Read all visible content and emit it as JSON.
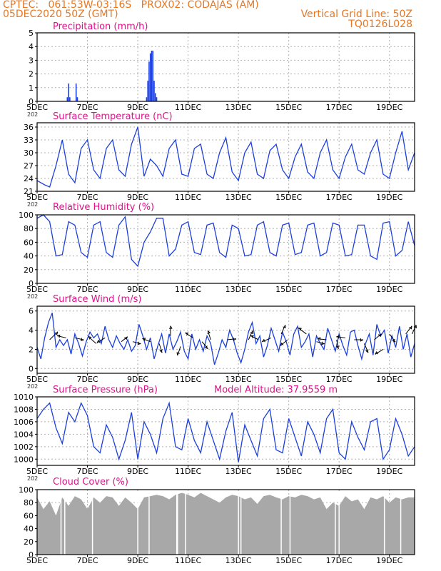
{
  "header": {
    "line1_left": "CPTEC:   061:53W-03:16S   PROX02: CODAJAS (AM)",
    "line2_left": "05DEC2020 50Z (GMT)",
    "line2_right": "Vertical Grid Line: 50Z",
    "line3_right": "TQ0126L028"
  },
  "colors": {
    "header": "#e87722",
    "panel_title": "#e0118a",
    "line": "#1c3fdc",
    "precip_bar": "#1c3fdc",
    "cloud_fill": "#a8a8a8",
    "grid": "#b0b0b0",
    "arrow": "#000000"
  },
  "x_axis": {
    "ticks": [
      "5DEC",
      "7DEC",
      "9DEC",
      "11DEC",
      "13DEC",
      "15DEC",
      "17DEC",
      "19DEC"
    ],
    "tick_day_offsets": [
      0,
      2,
      4,
      6,
      8,
      10,
      12,
      14
    ],
    "range_days": [
      0,
      15
    ],
    "stub_label": "202"
  },
  "chart_data": [
    {
      "type": "bar",
      "title": "Precipitation (mm/h)",
      "ylim": [
        0,
        5
      ],
      "yticks": [
        "0",
        "1",
        "2",
        "3",
        "4",
        "5"
      ],
      "bars_day": [
        1.2,
        1.25,
        1.3,
        1.55,
        1.6,
        4.35,
        4.4,
        4.45,
        4.5,
        4.55,
        4.6,
        4.65,
        4.7,
        4.75
      ],
      "bars_value": [
        0.3,
        1.3,
        0.3,
        1.3,
        0.3,
        0.3,
        1.5,
        2.9,
        3.5,
        3.7,
        3.7,
        1.5,
        0.6,
        0.3
      ]
    },
    {
      "type": "line",
      "title": "Surface Temperature (nC)",
      "ylim": [
        21,
        37
      ],
      "yticks": [
        "21",
        "24",
        "27",
        "30",
        "33",
        "36"
      ],
      "x_day": [
        0,
        0.3,
        0.5,
        0.75,
        1,
        1.25,
        1.5,
        1.75,
        2,
        2.25,
        2.5,
        2.75,
        3,
        3.25,
        3.5,
        3.75,
        4,
        4.25,
        4.5,
        4.75,
        5,
        5.25,
        5.5,
        5.75,
        6,
        6.25,
        6.5,
        6.75,
        7,
        7.25,
        7.5,
        7.75,
        8,
        8.25,
        8.5,
        8.75,
        9,
        9.25,
        9.5,
        9.75,
        10,
        10.25,
        10.5,
        10.75,
        11,
        11.25,
        11.5,
        11.75,
        12,
        12.25,
        12.5,
        12.75,
        13,
        13.25,
        13.5,
        13.75,
        14,
        14.25,
        14.5,
        14.75,
        15
      ],
      "y": [
        23.5,
        22.5,
        22.0,
        27.0,
        33.0,
        25.0,
        23.0,
        31.0,
        33.0,
        26.0,
        24.0,
        31.0,
        33.0,
        26.0,
        24.5,
        32.0,
        36.0,
        24.5,
        28.5,
        27.0,
        24.5,
        31.0,
        33.0,
        25.0,
        24.5,
        31.0,
        32.0,
        25.0,
        24.0,
        30.0,
        33.5,
        25.5,
        23.5,
        30.0,
        32.5,
        25.0,
        24.0,
        30.5,
        32.0,
        26.0,
        24.0,
        29.0,
        32.0,
        25.5,
        24.0,
        30.0,
        33.0,
        26.0,
        24.0,
        29.0,
        32.0,
        26.0,
        25.0,
        30.0,
        33.0,
        25.0,
        24.0,
        30.0,
        35.0,
        26.0,
        30.0
      ]
    },
    {
      "type": "line",
      "title": "Relative Humidity (%)",
      "ylim": [
        0,
        100
      ],
      "yticks": [
        "0",
        "20",
        "40",
        "60",
        "80",
        "100"
      ],
      "x_day": [
        0,
        0.25,
        0.5,
        0.75,
        1,
        1.25,
        1.5,
        1.75,
        2,
        2.25,
        2.5,
        2.75,
        3,
        3.25,
        3.5,
        3.75,
        4,
        4.25,
        4.5,
        4.75,
        5,
        5.25,
        5.5,
        5.75,
        6,
        6.25,
        6.5,
        6.75,
        7,
        7.25,
        7.5,
        7.75,
        8,
        8.25,
        8.5,
        8.75,
        9,
        9.25,
        9.5,
        9.75,
        10,
        10.25,
        10.5,
        10.75,
        11,
        11.25,
        11.5,
        11.75,
        12,
        12.25,
        12.5,
        12.75,
        13,
        13.25,
        13.5,
        13.75,
        14,
        14.25,
        14.5,
        14.75,
        15
      ],
      "y": [
        95,
        100,
        90,
        40,
        42,
        90,
        85,
        45,
        38,
        85,
        90,
        45,
        38,
        85,
        97,
        35,
        25,
        60,
        75,
        95,
        95,
        40,
        50,
        85,
        90,
        45,
        42,
        85,
        88,
        45,
        38,
        85,
        80,
        40,
        42,
        85,
        90,
        45,
        40,
        85,
        88,
        42,
        45,
        85,
        88,
        40,
        45,
        88,
        85,
        40,
        42,
        85,
        85,
        40,
        35,
        88,
        90,
        40,
        48,
        90,
        55
      ]
    },
    {
      "type": "line",
      "title": "Surface Wind (m/s)",
      "ylim": [
        -0.5,
        6.5
      ],
      "yticks": [
        "0",
        "2",
        "4",
        "6"
      ],
      "x_day": [
        0,
        0.15,
        0.3,
        0.45,
        0.6,
        0.75,
        0.9,
        1.05,
        1.2,
        1.35,
        1.5,
        1.65,
        1.8,
        1.95,
        2.1,
        2.25,
        2.4,
        2.55,
        2.7,
        2.85,
        3.0,
        3.15,
        3.3,
        3.45,
        3.6,
        3.75,
        3.9,
        4.05,
        4.2,
        4.35,
        4.5,
        4.65,
        4.8,
        4.95,
        5.1,
        5.25,
        5.4,
        5.55,
        5.7,
        5.85,
        6.0,
        6.15,
        6.3,
        6.45,
        6.6,
        6.75,
        6.9,
        7.05,
        7.2,
        7.35,
        7.5,
        7.65,
        7.8,
        7.95,
        8.1,
        8.25,
        8.4,
        8.55,
        8.7,
        8.85,
        9.0,
        9.15,
        9.3,
        9.45,
        9.6,
        9.75,
        9.9,
        10.05,
        10.2,
        10.35,
        10.5,
        10.65,
        10.8,
        10.95,
        11.1,
        11.25,
        11.4,
        11.55,
        11.7,
        11.85,
        12.0,
        12.15,
        12.3,
        12.45,
        12.6,
        12.75,
        12.9,
        13.05,
        13.2,
        13.35,
        13.5,
        13.65,
        13.8,
        13.95,
        14.1,
        14.25,
        14.4,
        14.55,
        14.7,
        14.85,
        15.0
      ],
      "y": [
        2.2,
        1.0,
        3.2,
        4.8,
        5.8,
        2.2,
        3.0,
        2.4,
        3.0,
        1.5,
        3.6,
        2.6,
        1.3,
        2.8,
        3.8,
        3.2,
        3.6,
        2.6,
        4.4,
        3.0,
        2.2,
        3.4,
        2.6,
        2.0,
        3.0,
        1.8,
        2.4,
        4.6,
        3.4,
        2.0,
        3.2,
        1.0,
        2.4,
        3.6,
        1.6,
        3.6,
        2.0,
        2.8,
        3.8,
        1.8,
        1.0,
        3.6,
        2.0,
        3.0,
        1.8,
        3.4,
        2.6,
        0.4,
        1.6,
        3.0,
        2.2,
        4.0,
        3.0,
        1.6,
        0.6,
        2.0,
        3.8,
        4.8,
        2.6,
        3.4,
        1.2,
        2.4,
        4.2,
        3.0,
        1.8,
        3.8,
        2.8,
        1.4,
        3.6,
        4.4,
        2.2,
        2.8,
        3.6,
        1.2,
        3.4,
        2.6,
        2.0,
        4.2,
        3.0,
        1.8,
        3.6,
        2.4,
        1.4,
        3.8,
        4.0,
        2.4,
        1.0,
        2.6,
        3.6,
        1.4,
        4.6,
        3.4,
        4.0,
        1.6,
        3.4,
        2.2,
        4.4,
        2.0,
        3.6,
        1.2,
        2.6
      ],
      "arrows": [
        {
          "day": 0.5,
          "speed": 3.0,
          "dx": 0.8,
          "dy": 0.8
        },
        {
          "day": 1.15,
          "speed": 3.2,
          "dx": -0.9,
          "dy": 0.2
        },
        {
          "day": 1.5,
          "speed": 3.2,
          "dx": 0.9,
          "dy": -0.2
        },
        {
          "day": 2.35,
          "speed": 2.6,
          "dx": -0.8,
          "dy": 0.7
        },
        {
          "day": 2.7,
          "speed": 3.2,
          "dx": -0.8,
          "dy": -0.5
        },
        {
          "day": 3.35,
          "speed": 2.8,
          "dx": 0.6,
          "dy": 0.5
        },
        {
          "day": 3.8,
          "speed": 2.8,
          "dx": 0.8,
          "dy": -0.2
        },
        {
          "day": 4.5,
          "speed": 2.8,
          "dx": -0.8,
          "dy": 0.3
        },
        {
          "day": 4.85,
          "speed": 2.6,
          "dx": 0.3,
          "dy": -0.9
        },
        {
          "day": 5.3,
          "speed": 3.4,
          "dx": 0,
          "dy": 1.0
        },
        {
          "day": 5.7,
          "speed": 2.3,
          "dx": -0.3,
          "dy": -0.9
        },
        {
          "day": 6.2,
          "speed": 3.2,
          "dx": -0.8,
          "dy": 0.5
        },
        {
          "day": 6.55,
          "speed": 2.8,
          "dx": 0.6,
          "dy": -0.7
        },
        {
          "day": 6.9,
          "speed": 3.0,
          "dx": -0.3,
          "dy": 0.9
        },
        {
          "day": 7.55,
          "speed": 3.0,
          "dx": 0.9,
          "dy": 0.1
        },
        {
          "day": 8.4,
          "speed": 3.0,
          "dx": 0.4,
          "dy": 0.9
        },
        {
          "day": 8.8,
          "speed": 3.0,
          "dx": -0.8,
          "dy": 0.4
        },
        {
          "day": 9.3,
          "speed": 3.2,
          "dx": -0.9,
          "dy": -0.4
        },
        {
          "day": 9.7,
          "speed": 3.6,
          "dx": 0.4,
          "dy": 0.9
        },
        {
          "day": 9.95,
          "speed": 3.0,
          "dx": -0.7,
          "dy": -0.6
        },
        {
          "day": 10.7,
          "speed": 3.6,
          "dx": -0.8,
          "dy": 0.6
        },
        {
          "day": 11.1,
          "speed": 2.8,
          "dx": 0.8,
          "dy": -0.2
        },
        {
          "day": 11.5,
          "speed": 3.0,
          "dx": -0.9,
          "dy": 0.1
        },
        {
          "day": 11.9,
          "speed": 3.0,
          "dx": 0.2,
          "dy": -0.9
        },
        {
          "day": 12.25,
          "speed": 3.2,
          "dx": -0.9,
          "dy": 0.1
        },
        {
          "day": 12.6,
          "speed": 3.0,
          "dx": 0.9,
          "dy": 0
        },
        {
          "day": 13.0,
          "speed": 2.6,
          "dx": 0.4,
          "dy": -0.9
        },
        {
          "day": 13.4,
          "speed": 3.0,
          "dx": 0.7,
          "dy": 0.6
        },
        {
          "day": 13.75,
          "speed": 2.0,
          "dx": -0.8,
          "dy": -0.5
        },
        {
          "day": 14.0,
          "speed": 3.6,
          "dx": 0.6,
          "dy": -0.8
        },
        {
          "day": 14.65,
          "speed": 3.6,
          "dx": 0.6,
          "dy": 0.8
        },
        {
          "day": 14.9,
          "speed": 3.6,
          "dx": 0.4,
          "dy": 0.9
        }
      ]
    },
    {
      "type": "line",
      "title": "Surface Pressure (hPa)",
      "subtitle": "Model Altitude: 37.9559 m",
      "ylim": [
        999,
        1010
      ],
      "yticks": [
        "1000",
        "1002",
        "1004",
        "1006",
        "1008",
        "1010"
      ],
      "x_day": [
        0,
        0.25,
        0.5,
        0.75,
        1,
        1.25,
        1.5,
        1.75,
        2,
        2.25,
        2.5,
        2.75,
        3,
        3.25,
        3.5,
        3.75,
        4,
        4.25,
        4.5,
        4.75,
        5,
        5.25,
        5.5,
        5.75,
        6,
        6.25,
        6.5,
        6.75,
        7,
        7.25,
        7.5,
        7.75,
        8,
        8.25,
        8.5,
        8.75,
        9,
        9.25,
        9.5,
        9.75,
        10,
        10.25,
        10.5,
        10.75,
        11,
        11.25,
        11.5,
        11.75,
        12,
        12.25,
        12.5,
        12.75,
        13,
        13.25,
        13.5,
        13.75,
        14,
        14.25,
        14.5,
        14.75,
        15
      ],
      "y": [
        1006.5,
        1008,
        1009,
        1005,
        1002.5,
        1007.5,
        1006,
        1009,
        1007,
        1002,
        1001,
        1005.5,
        1003.5,
        1000,
        1003,
        1007.5,
        1000,
        1006,
        1004,
        1001,
        1006.5,
        1009,
        1002,
        1001.5,
        1006.5,
        1003,
        1001,
        1006,
        1003,
        1000,
        1004.5,
        1007.5,
        999.5,
        1005.5,
        1003,
        1000.5,
        1006.5,
        1008,
        1001.5,
        1001,
        1006.5,
        1003.5,
        1000.5,
        1006,
        1004,
        1001,
        1006.5,
        1008,
        1001,
        1000,
        1006,
        1003.5,
        1001.5,
        1006,
        1006.5,
        1000,
        1001.5,
        1006.5,
        1004,
        1000.5,
        1002
      ]
    },
    {
      "type": "area",
      "title": "Cloud Cover (%)",
      "ylim": [
        0,
        100
      ],
      "yticks": [
        "0",
        "20",
        "40",
        "60",
        "80",
        "100"
      ],
      "x_day": [
        0,
        0.25,
        0.5,
        0.75,
        1,
        1.25,
        1.5,
        1.75,
        2,
        2.25,
        2.5,
        2.75,
        3,
        3.25,
        3.5,
        3.75,
        4,
        4.25,
        4.5,
        4.75,
        5,
        5.25,
        5.5,
        5.75,
        6,
        6.25,
        6.5,
        6.75,
        7,
        7.25,
        7.5,
        7.75,
        8,
        8.25,
        8.5,
        8.75,
        9,
        9.25,
        9.5,
        9.75,
        10,
        10.25,
        10.5,
        10.75,
        11,
        11.25,
        11.5,
        11.75,
        12,
        12.25,
        12.5,
        12.75,
        13,
        13.25,
        13.5,
        13.75,
        14,
        14.25,
        14.5,
        14.75,
        15
      ],
      "y": [
        88,
        70,
        82,
        60,
        88,
        75,
        90,
        85,
        70,
        88,
        80,
        90,
        88,
        75,
        88,
        80,
        70,
        88,
        90,
        92,
        90,
        85,
        92,
        95,
        92,
        88,
        95,
        90,
        85,
        80,
        88,
        92,
        90,
        85,
        88,
        78,
        90,
        92,
        88,
        85,
        90,
        88,
        92,
        90,
        85,
        88,
        70,
        80,
        75,
        90,
        82,
        85,
        70,
        88,
        85,
        90,
        80,
        88,
        85,
        88,
        88
      ],
      "dips_day": [
        0.95,
        1.1,
        2.2,
        4.0,
        4.45,
        5.55,
        5.58,
        5.9,
        8.0,
        8.1,
        9.7,
        10.05,
        11.85,
        12.0,
        13.8,
        14.45
      ]
    }
  ]
}
